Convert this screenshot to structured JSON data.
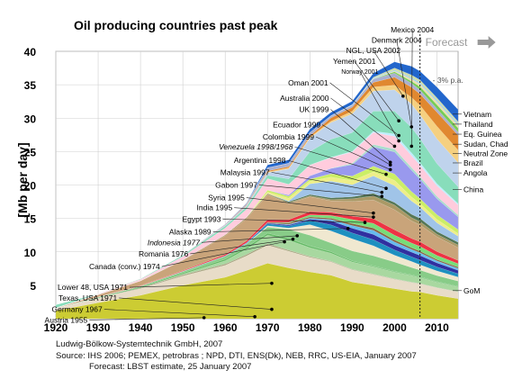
{
  "chart_data": {
    "type": "area",
    "title": "Oil producing countries past peak",
    "ylabel": "[Mb per day]",
    "xlabel": "",
    "xlim": [
      1920,
      2015
    ],
    "ylim": [
      0,
      40
    ],
    "x_ticks": [
      1920,
      1930,
      1940,
      1950,
      1960,
      1970,
      1980,
      1990,
      2000,
      2010
    ],
    "y_ticks": [
      5,
      10,
      15,
      20,
      25,
      30,
      35,
      40
    ],
    "grid": true,
    "forecast": {
      "start_year": 2006,
      "label": "Forecast",
      "rate_label": "- 3% p.a."
    },
    "x": [
      1920,
      1930,
      1940,
      1950,
      1960,
      1965,
      1970,
      1975,
      1980,
      1985,
      1990,
      1995,
      2000,
      2004,
      2006,
      2010,
      2015
    ],
    "series": [
      {
        "name": "Lower 48, USA 1971",
        "color": "#cccc33",
        "values": [
          1.2,
          2.4,
          3.5,
          5.0,
          6.2,
          7.2,
          8.3,
          7.6,
          7.0,
          6.5,
          5.5,
          5.0,
          4.5,
          4.1,
          4.0,
          3.5,
          3.0
        ]
      },
      {
        "name": "Texas, USA 1971",
        "color": "#e8dcc8",
        "values": [
          0.3,
          0.7,
          1.0,
          1.4,
          1.8,
          2.2,
          2.7,
          2.5,
          2.2,
          2.0,
          1.8,
          1.6,
          1.4,
          1.3,
          1.2,
          1.1,
          1.0
        ]
      },
      {
        "name": "Germany 1967",
        "color": "#9a9a6a",
        "values": [
          0,
          0,
          0.05,
          0.1,
          0.12,
          0.14,
          0.15,
          0.12,
          0.1,
          0.08,
          0.07,
          0.06,
          0.05,
          0.05,
          0.05,
          0.04,
          0.03
        ]
      },
      {
        "name": "Austria 1955",
        "color": "#806040",
        "values": [
          0,
          0,
          0.05,
          0.06,
          0.05,
          0.05,
          0.05,
          0.04,
          0.03,
          0.03,
          0.02,
          0.02,
          0.02,
          0.02,
          0.02,
          0.02,
          0.02
        ]
      },
      {
        "name": "Canada (conv.) 1974",
        "color": "#a8d8a0",
        "values": [
          0,
          0,
          0.02,
          0.1,
          0.5,
          0.8,
          1.3,
          1.5,
          1.3,
          1.2,
          1.1,
          1.1,
          1.0,
          1.0,
          0.9,
          0.8,
          0.7
        ]
      },
      {
        "name": "Romania 1976",
        "color": "#66bb66",
        "values": [
          0.02,
          0.1,
          0.12,
          0.2,
          0.25,
          0.28,
          0.3,
          0.3,
          0.25,
          0.22,
          0.15,
          0.13,
          0.12,
          0.1,
          0.1,
          0.09,
          0.08
        ]
      },
      {
        "name": "Indonesia 1977",
        "color": "#88cc88",
        "values": [
          0,
          0.05,
          0.15,
          0.2,
          0.4,
          0.5,
          0.9,
          1.3,
          1.6,
          1.3,
          1.5,
          1.5,
          1.4,
          1.1,
          1.0,
          0.9,
          0.8
        ]
      },
      {
        "name": "Alaska 1989",
        "color": "#f0e8d0",
        "values": [
          0,
          0,
          0,
          0,
          0,
          0.02,
          0.2,
          0.2,
          1.6,
          1.8,
          1.8,
          1.5,
          1.0,
          0.9,
          0.8,
          0.7,
          0.6
        ]
      },
      {
        "name": "Egypt 1993",
        "color": "#1e90c0",
        "values": [
          0,
          0,
          0,
          0.05,
          0.08,
          0.1,
          0.3,
          0.3,
          0.6,
          0.9,
          0.9,
          0.9,
          0.8,
          0.7,
          0.7,
          0.6,
          0.5
        ]
      },
      {
        "name": "India 1995",
        "color": "#3030a0",
        "values": [
          0,
          0,
          0,
          0,
          0.01,
          0.05,
          0.1,
          0.15,
          0.2,
          0.6,
          0.7,
          0.8,
          0.7,
          0.7,
          0.7,
          0.6,
          0.5
        ]
      },
      {
        "name": "Syria 1995",
        "color": "#66bbee",
        "values": [
          0,
          0,
          0,
          0,
          0,
          0,
          0.01,
          0.1,
          0.15,
          0.2,
          0.4,
          0.6,
          0.5,
          0.4,
          0.4,
          0.3,
          0.3
        ]
      },
      {
        "name": "Gabon 1997",
        "color": "#886644",
        "values": [
          0,
          0,
          0,
          0,
          0,
          0,
          0.1,
          0.2,
          0.2,
          0.2,
          0.3,
          0.35,
          0.3,
          0.25,
          0.25,
          0.2,
          0.2
        ]
      },
      {
        "name": "Malaysia 1997",
        "color": "#77dd77",
        "values": [
          0,
          0,
          0,
          0,
          0,
          0,
          0.02,
          0.1,
          0.3,
          0.4,
          0.6,
          0.7,
          0.7,
          0.7,
          0.7,
          0.6,
          0.5
        ]
      },
      {
        "name": "Argentina 1998",
        "color": "#ee3344",
        "values": [
          0,
          0.02,
          0.05,
          0.1,
          0.2,
          0.3,
          0.4,
          0.4,
          0.5,
          0.5,
          0.5,
          0.7,
          0.8,
          0.7,
          0.7,
          0.6,
          0.5
        ]
      },
      {
        "name": "Venezuela 1998/1968",
        "color": "#c9a47a",
        "values": [
          0.05,
          0.3,
          0.7,
          1.5,
          2.8,
          3.3,
          3.7,
          2.4,
          2.2,
          1.7,
          2.2,
          2.8,
          3.0,
          2.6,
          2.5,
          2.2,
          1.9
        ]
      },
      {
        "name": "Colombia 1999",
        "color": "#aa9966",
        "values": [
          0,
          0.02,
          0.05,
          0.1,
          0.15,
          0.2,
          0.2,
          0.15,
          0.15,
          0.2,
          0.4,
          0.6,
          0.7,
          0.5,
          0.5,
          0.4,
          0.4
        ]
      },
      {
        "name": "Ecuador 1999",
        "color": "#557755",
        "values": [
          0,
          0,
          0,
          0,
          0,
          0,
          0.01,
          0.15,
          0.2,
          0.25,
          0.3,
          0.4,
          0.4,
          0.5,
          0.5,
          0.4,
          0.4
        ]
      },
      {
        "name": "UK 1999",
        "color": "#a0c4e8",
        "values": [
          0,
          0,
          0,
          0,
          0,
          0,
          0.01,
          0.1,
          1.6,
          2.5,
          1.8,
          2.6,
          2.5,
          2.0,
          1.7,
          1.3,
          0.9
        ]
      },
      {
        "name": "Australia 2000",
        "color": "#eeee88",
        "values": [
          0,
          0,
          0,
          0,
          0,
          0.01,
          0.2,
          0.4,
          0.4,
          0.6,
          0.6,
          0.6,
          0.8,
          0.6,
          0.5,
          0.5,
          0.4
        ]
      },
      {
        "name": "Oman 2001",
        "color": "#ccee66",
        "values": [
          0,
          0,
          0,
          0,
          0,
          0,
          0.3,
          0.3,
          0.3,
          0.5,
          0.7,
          0.85,
          0.95,
          0.8,
          0.75,
          0.7,
          0.6
        ]
      },
      {
        "name": "Norway 2001",
        "color": "#9999ee",
        "values": [
          0,
          0,
          0,
          0,
          0,
          0,
          0,
          0.2,
          0.5,
          0.8,
          1.7,
          2.9,
          3.3,
          3.2,
          2.9,
          2.4,
          1.9
        ]
      },
      {
        "name": "Yemen 2001",
        "color": "#aaddcc",
        "values": [
          0,
          0,
          0,
          0,
          0,
          0,
          0,
          0,
          0,
          0.02,
          0.2,
          0.35,
          0.45,
          0.4,
          0.4,
          0.35,
          0.3
        ]
      },
      {
        "name": "NGL, USA 2002",
        "color": "#ffccdd",
        "values": [
          0.05,
          0.1,
          0.2,
          0.5,
          1.0,
          1.2,
          1.7,
          1.6,
          1.6,
          1.6,
          1.7,
          1.8,
          1.9,
          1.8,
          1.7,
          1.6,
          1.5
        ]
      },
      {
        "name": "Denmark 2004",
        "color": "#bbeeff",
        "values": [
          0,
          0,
          0,
          0,
          0,
          0,
          0,
          0,
          0.02,
          0.05,
          0.1,
          0.2,
          0.35,
          0.4,
          0.35,
          0.3,
          0.2
        ]
      },
      {
        "name": "Mexico 2004",
        "color": "#88ddbb",
        "values": [
          0.5,
          0.05,
          0.1,
          0.2,
          0.3,
          0.35,
          0.5,
          0.8,
          2.0,
          2.7,
          2.8,
          3.0,
          3.4,
          3.8,
          3.6,
          3.0,
          2.5
        ]
      },
      {
        "name": "China",
        "color": "#bfd3ec",
        "values": [
          0,
          0,
          0,
          0,
          0.1,
          0.2,
          0.4,
          1.5,
          2.0,
          2.5,
          2.8,
          3.0,
          3.2,
          3.5,
          3.6,
          3.7,
          3.6
        ]
      },
      {
        "name": "Angola",
        "color": "#f5d080",
        "values": [
          0,
          0,
          0,
          0,
          0,
          0,
          0.1,
          0.15,
          0.15,
          0.2,
          0.4,
          0.6,
          0.7,
          1.0,
          1.4,
          1.9,
          1.9
        ]
      },
      {
        "name": "Brazil",
        "color": "#e08830",
        "values": [
          0,
          0,
          0,
          0,
          0.05,
          0.1,
          0.15,
          0.2,
          0.2,
          0.5,
          0.6,
          0.7,
          1.2,
          1.5,
          1.7,
          2.1,
          2.2
        ]
      },
      {
        "name": "Neutral Zone",
        "color": "#aab0d0",
        "values": [
          0,
          0,
          0,
          0.05,
          0.15,
          0.3,
          0.5,
          0.5,
          0.5,
          0.3,
          0.3,
          0.5,
          0.6,
          0.6,
          0.6,
          0.5,
          0.5
        ]
      },
      {
        "name": "Sudan, Chad",
        "color": "#77cc55",
        "values": [
          0,
          0,
          0,
          0,
          0,
          0,
          0,
          0,
          0,
          0,
          0,
          0.02,
          0.2,
          0.3,
          0.5,
          0.6,
          0.6
        ]
      },
      {
        "name": "Eq. Guinea",
        "color": "#e8e0b0",
        "values": [
          0,
          0,
          0,
          0,
          0,
          0,
          0,
          0,
          0,
          0,
          0,
          0.02,
          0.12,
          0.35,
          0.4,
          0.45,
          0.4
        ]
      },
      {
        "name": "Thailand",
        "color": "#99ccee",
        "values": [
          0,
          0,
          0,
          0,
          0,
          0,
          0,
          0,
          0,
          0.03,
          0.05,
          0.08,
          0.15,
          0.2,
          0.22,
          0.25,
          0.25
        ]
      },
      {
        "name": "Vietnam",
        "color": "#ccddaa",
        "values": [
          0,
          0,
          0,
          0,
          0,
          0,
          0,
          0,
          0,
          0,
          0.05,
          0.15,
          0.3,
          0.4,
          0.38,
          0.35,
          0.3
        ]
      },
      {
        "name": "GoM",
        "color": "#2266cc",
        "values": [
          0,
          0,
          0,
          0,
          0,
          0,
          0.4,
          0.5,
          0.5,
          0.5,
          0.5,
          0.6,
          0.9,
          1.3,
          1.3,
          1.6,
          1.8
        ]
      }
    ],
    "peak_labels": [
      {
        "text": "Mexico 2004",
        "italic": false,
        "year": 2004,
        "value": 25.8,
        "text_year": 2004.2,
        "text_value": 42.8,
        "anchor": "middle"
      },
      {
        "text": "Denmark 2004",
        "italic": false,
        "year": 2004,
        "value": 28.7,
        "text_year": 2000.5,
        "text_value": 41.3,
        "anchor": "middle"
      },
      {
        "text": "NGL, USA 2002",
        "italic": false,
        "year": 2002,
        "value": 33.3,
        "text_year": 1995,
        "text_value": 39.7,
        "anchor": "middle"
      },
      {
        "text": "Yemen 2001",
        "italic": false,
        "year": 2001,
        "value": 29.6,
        "text_year": 1990.5,
        "text_value": 38.1,
        "anchor": "middle"
      },
      {
        "text": "Norway 2001",
        "italic": false,
        "year": 2001,
        "value": 26.6,
        "text_year": 1991.8,
        "text_value": 36.6,
        "anchor": "middle",
        "small": true
      },
      {
        "text": "Oman 2001",
        "italic": false,
        "year": 2001,
        "value": 27.4,
        "text_year": 1984.3,
        "text_value": 34.9,
        "anchor": "end"
      },
      {
        "text": "Australia 2000",
        "italic": false,
        "year": 2000,
        "value": 25.8,
        "text_year": 1984.5,
        "text_value": 32.6,
        "anchor": "end"
      },
      {
        "text": "UK 1999",
        "italic": false,
        "year": 1999,
        "value": 23.4,
        "text_year": 1984.5,
        "text_value": 30.9,
        "anchor": "end"
      },
      {
        "text": "Ecuador 1999",
        "italic": false,
        "year": 1999,
        "value": 23.0,
        "text_year": 1982.5,
        "text_value": 28.6,
        "anchor": "end"
      },
      {
        "text": "Colombia 1999",
        "italic": false,
        "year": 1999,
        "value": 22.3,
        "text_year": 1981,
        "text_value": 26.8,
        "anchor": "end"
      },
      {
        "text": "Venezuela 1998/1968",
        "italic": true,
        "year": 1998,
        "value": 21.6,
        "text_year": 1976,
        "text_value": 25.3,
        "anchor": "end"
      },
      {
        "text": "Argentina 1998",
        "italic": false,
        "year": 1998,
        "value": 19.5,
        "text_year": 1974.3,
        "text_value": 23.3,
        "anchor": "end"
      },
      {
        "text": "Malaysia 1997",
        "italic": false,
        "year": 1997,
        "value": 18.9,
        "text_year": 1970.5,
        "text_value": 21.5,
        "anchor": "end"
      },
      {
        "text": "Gabon 1997",
        "italic": false,
        "year": 1997,
        "value": 18.3,
        "text_year": 1967.6,
        "text_value": 19.6,
        "anchor": "end"
      },
      {
        "text": "Syria 1995",
        "italic": false,
        "year": 1995,
        "value": 15.8,
        "text_year": 1964.6,
        "text_value": 17.7,
        "anchor": "end"
      },
      {
        "text": "India 1995",
        "italic": false,
        "year": 1995,
        "value": 15.2,
        "text_year": 1961.7,
        "text_value": 16.2,
        "anchor": "end"
      },
      {
        "text": "Egypt 1993",
        "italic": false,
        "year": 1993,
        "value": 14.4,
        "text_year": 1959,
        "text_value": 14.5,
        "anchor": "end"
      },
      {
        "text": "Alaska 1989",
        "italic": false,
        "year": 1989,
        "value": 13.5,
        "text_year": 1956.7,
        "text_value": 12.6,
        "anchor": "end"
      },
      {
        "text": "Indonesia 1977",
        "italic": true,
        "year": 1977,
        "value": 12.4,
        "text_year": 1954,
        "text_value": 11.0,
        "anchor": "end"
      },
      {
        "text": "Romania 1976",
        "italic": false,
        "year": 1976,
        "value": 11.9,
        "text_year": 1951.3,
        "text_value": 9.3,
        "anchor": "end"
      },
      {
        "text": "Canada (conv.) 1974",
        "italic": false,
        "year": 1974,
        "value": 11.5,
        "text_year": 1944.6,
        "text_value": 7.4,
        "anchor": "end"
      },
      {
        "text": "Lower 48, USA 1971",
        "italic": false,
        "year": 1971,
        "value": 5.3,
        "text_year": 1937,
        "text_value": 4.3,
        "anchor": "end"
      },
      {
        "text": "Texas, USA 1971",
        "italic": false,
        "year": 1971,
        "value": 1.4,
        "text_year": 1934.5,
        "text_value": 2.7,
        "anchor": "end"
      },
      {
        "text": "Germany 1967",
        "italic": false,
        "year": 1967,
        "value": 0.3,
        "text_year": 1931,
        "text_value": 1.0,
        "anchor": "end"
      },
      {
        "text": "Austria 1955",
        "italic": false,
        "year": 1955,
        "value": 0.15,
        "text_year": 1927.5,
        "text_value": -0.6,
        "anchor": "end"
      }
    ],
    "right_labels": [
      "Vietnam",
      "Thailand",
      "Eq. Guinea",
      "Sudan, Chad",
      "Neutral Zone",
      "Brazil",
      "Angola",
      "China",
      "GoM"
    ],
    "right_label_values": [
      30.2,
      28.7,
      27.2,
      25.7,
      24.3,
      22.9,
      21.4,
      18.9,
      3.8
    ]
  },
  "credits": {
    "line1": "Ludwig-Bölkow-Systemtechnik GmbH, 2007",
    "line2": "Source: IHS 2006; PEMEX, petrobras ;  NPD, DTI, ENS(Dk), NEB, RRC, US-EIA, January 2007",
    "line3": "Forecast: LBST estimate, 25 January 2007"
  }
}
